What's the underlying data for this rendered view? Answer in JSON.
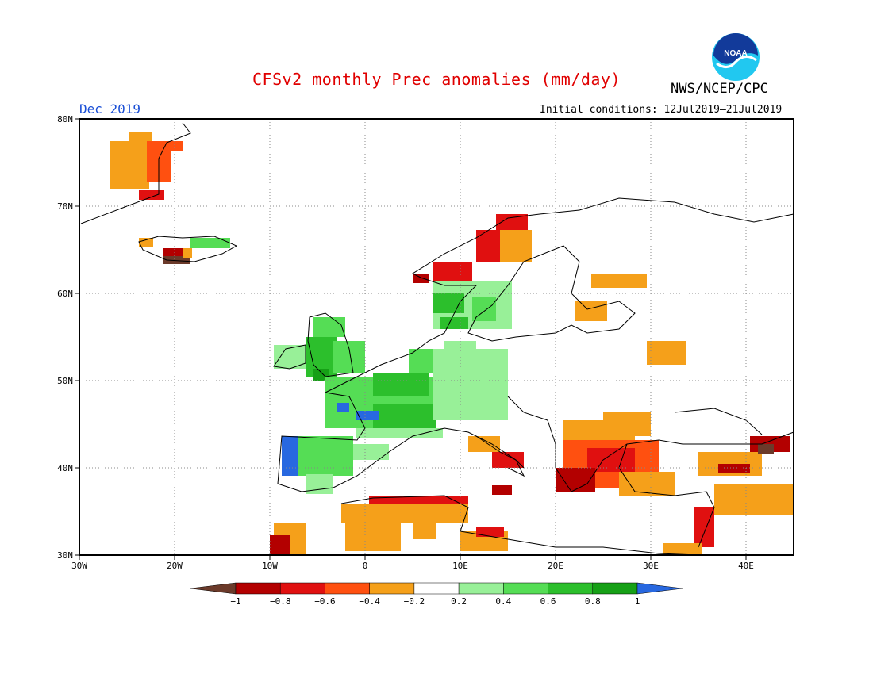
{
  "header": {
    "title": "CFSv2 monthly Prec anomalies (mm/day)",
    "org": "NWS/NCEP/CPC",
    "month": "Dec 2019",
    "initial_conditions": "Initial conditions: 12Jul2019–21Jul2019",
    "logo_text": "NOAA"
  },
  "map": {
    "lat_labels": [
      "80N",
      "70N",
      "60N",
      "50N",
      "40N",
      "30N"
    ],
    "lon_labels": [
      "30W",
      "20W",
      "10W",
      "0",
      "10E",
      "20E",
      "30E",
      "40E"
    ],
    "extent": {
      "lon": [
        -30,
        45
      ],
      "lat": [
        30,
        80
      ]
    },
    "grid": "dotted"
  },
  "legend": {
    "tick_labels": [
      "−1",
      "−0.8",
      "−0.6",
      "−0.4",
      "−0.2",
      "0.2",
      "0.4",
      "0.6",
      "0.8",
      "1"
    ],
    "colors": [
      "#6b3a2a",
      "#b30000",
      "#e01010",
      "#ff5010",
      "#f5a01a",
      "#ffffff",
      "#98f098",
      "#55dd55",
      "#2cbf2c",
      "#16a016",
      "#2868e0"
    ]
  },
  "anomaly_regions": [
    {
      "name": "greenland-east",
      "class": "neg-0.2"
    },
    {
      "name": "iceland",
      "class": "mixed"
    },
    {
      "name": "british-isles",
      "class": "pos-0.4"
    },
    {
      "name": "france-benelux-germany",
      "class": "pos-0.6"
    },
    {
      "name": "iberia-west",
      "class": "pos-1"
    },
    {
      "name": "scandinavia-south",
      "class": "pos-0.6"
    },
    {
      "name": "norway-coast",
      "class": "neg-0.6"
    },
    {
      "name": "balkans-greece-turkey",
      "class": "neg-0.6"
    },
    {
      "name": "north-africa",
      "class": "neg-0.2"
    }
  ]
}
